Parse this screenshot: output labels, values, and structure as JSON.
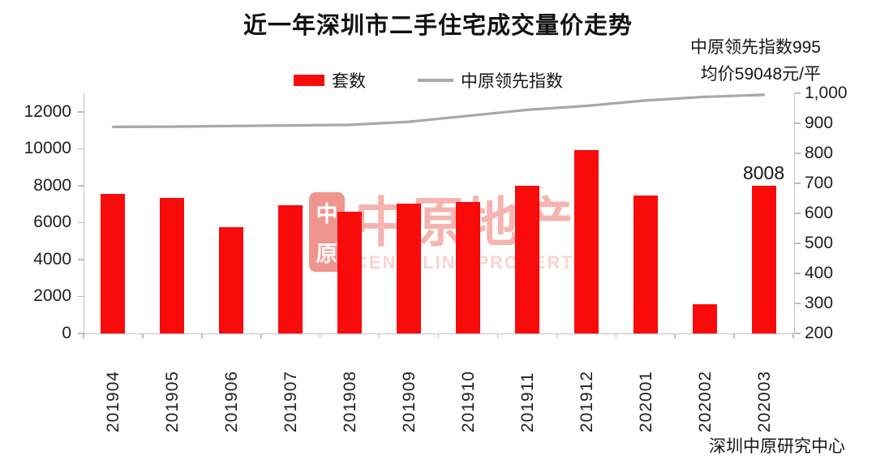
{
  "title": "近一年深圳市二手住宅成交量价走势",
  "annotation": {
    "line1": "中原领先指数995",
    "line2": "均价59048元/平"
  },
  "legend": {
    "bar_label": "套数",
    "line_label": "中原领先指数"
  },
  "source": "深圳中原研究中心",
  "watermark": {
    "seal_top": "中",
    "seal_bottom": "原",
    "text": "中原地产",
    "subtext": "CENTALINE PROPERTY"
  },
  "colors": {
    "bar_red": "#f90b0b",
    "line_gray": "#a8a8a8",
    "axis_line": "#c4c4c4",
    "watermark_pink": "#f5aca7"
  },
  "chart_data": {
    "type": "bar+line combo",
    "title": "近一年深圳市二手住宅成交量价走势",
    "categories": [
      "201904",
      "201905",
      "201906",
      "201907",
      "201908",
      "201909",
      "201910",
      "201911",
      "201912",
      "202001",
      "202002",
      "202003"
    ],
    "series": [
      {
        "name": "套数",
        "type": "bar",
        "axis": "left",
        "color": "#f90b0b",
        "values": [
          7550,
          7330,
          5770,
          6960,
          6570,
          7040,
          7100,
          7980,
          9940,
          7460,
          1600,
          8008
        ]
      },
      {
        "name": "中原领先指数",
        "type": "line",
        "axis": "right",
        "color": "#a8a8a8",
        "values": [
          888,
          889,
          891,
          893,
          895,
          905,
          925,
          945,
          958,
          976,
          988,
          995
        ]
      }
    ],
    "left_axis": {
      "min": 0,
      "max": 12000,
      "step": 2000,
      "plot_top_value": 13000
    },
    "right_axis": {
      "min": 200,
      "max": 1000,
      "step": 100
    },
    "grid": "off",
    "legend_position": "top",
    "data_labels": [
      {
        "category": "202003",
        "value": "8008"
      }
    ]
  }
}
